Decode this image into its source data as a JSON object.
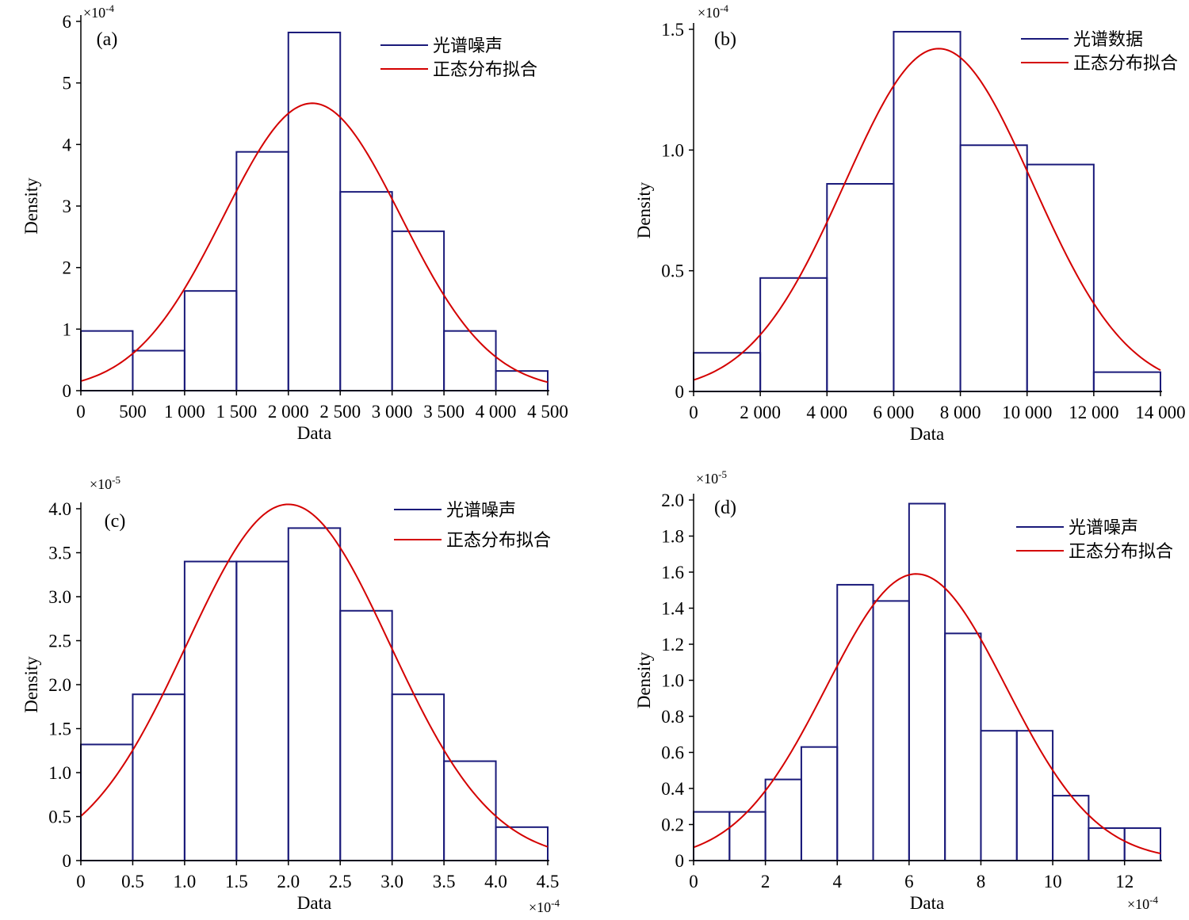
{
  "colors": {
    "histogram": "#1a1a7a",
    "fit": "#d40000",
    "axis": "#000000"
  },
  "chart_data": [
    {
      "panel": "(a)",
      "type": "bar",
      "xlabel": "Data",
      "ylabel": "Density",
      "multiplier": "×10",
      "exponent": "-4",
      "xlim": [
        0,
        4500
      ],
      "ylim": [
        0,
        6
      ],
      "xticks": [
        0,
        500,
        1000,
        1500,
        2000,
        2500,
        3000,
        3500,
        4000,
        4500
      ],
      "xtick_labels": [
        "0",
        "500",
        "1 000",
        "1 500",
        "2 000",
        "2 500",
        "3 000",
        "3 500",
        "4 000",
        "4 500"
      ],
      "yticks": [
        0,
        1,
        2,
        3,
        4,
        5,
        6
      ],
      "ytick_labels": [
        "0",
        "1",
        "2",
        "3",
        "4",
        "5",
        "6"
      ],
      "bin_edges": [
        0,
        500,
        1000,
        1500,
        2000,
        2500,
        3000,
        3500,
        4000,
        4500
      ],
      "values": [
        0.97,
        0.65,
        1.62,
        3.88,
        5.82,
        3.23,
        2.59,
        0.97,
        0.32
      ],
      "fit": {
        "mean": 2230,
        "sd": 855,
        "peak": 4.67
      },
      "legend": [
        "光谱噪声",
        "正态分布拟合"
      ],
      "legend_position": "top-right",
      "multiplier_position": "top-left"
    },
    {
      "panel": "(b)",
      "type": "bar",
      "xlabel": "Data",
      "ylabel": "Density",
      "multiplier": "×10",
      "exponent": "-4",
      "xlim": [
        0,
        14000
      ],
      "ylim": [
        0,
        1.5
      ],
      "xticks": [
        0,
        2000,
        4000,
        6000,
        8000,
        10000,
        12000,
        14000
      ],
      "xtick_labels": [
        "0",
        "2 000",
        "4 000",
        "6 000",
        "8 000",
        "10 000",
        "12 000",
        "14 000"
      ],
      "yticks": [
        0,
        0.5,
        1.0,
        1.5
      ],
      "ytick_labels": [
        "0",
        "0.5",
        "1.0",
        "1.5"
      ],
      "bin_edges": [
        0,
        2000,
        4000,
        6000,
        8000,
        10000,
        12000,
        14000
      ],
      "values": [
        0.16,
        0.47,
        0.86,
        1.49,
        1.02,
        0.94,
        0.08
      ],
      "fit": {
        "mean": 7350,
        "sd": 2820,
        "peak": 1.42
      },
      "legend": [
        "光谱数据",
        "正态分布拟合"
      ],
      "legend_position": "top-right",
      "multiplier_position": "top-left"
    },
    {
      "panel": "(c)",
      "type": "bar",
      "xlabel": "Data",
      "ylabel": "Density",
      "multiplier": "×10",
      "exponent": "-5",
      "x_multiplier": "×10",
      "x_exponent": "-4",
      "xlim": [
        0,
        4.5
      ],
      "ylim": [
        0,
        4.0
      ],
      "xticks": [
        0,
        0.5,
        1.0,
        1.5,
        2.0,
        2.5,
        3.0,
        3.5,
        4.0,
        4.5
      ],
      "xtick_labels": [
        "0",
        "0.5",
        "1.0",
        "1.5",
        "2.0",
        "2.5",
        "3.0",
        "3.5",
        "4.0",
        "4.5"
      ],
      "yticks": [
        0,
        0.5,
        1.0,
        1.5,
        2.0,
        2.5,
        3.0,
        3.5,
        4.0
      ],
      "ytick_labels": [
        "0",
        "0.5",
        "1.0",
        "1.5",
        "2.0",
        "2.5",
        "3.0",
        "3.5",
        "4.0"
      ],
      "bin_edges": [
        0,
        0.5,
        1.0,
        1.5,
        2.0,
        2.5,
        3.0,
        3.5,
        4.0,
        4.5
      ],
      "values": [
        1.32,
        1.89,
        3.4,
        3.4,
        3.78,
        2.84,
        1.89,
        1.13,
        0.38
      ],
      "fit": {
        "mean": 2.0,
        "sd": 0.98,
        "peak": 4.05
      },
      "legend": [
        "光谱噪声",
        "正态分布拟合"
      ],
      "legend_position": "top-right",
      "multiplier_position": "top-left"
    },
    {
      "panel": "(d)",
      "type": "bar",
      "xlabel": "Data",
      "ylabel": "Density",
      "multiplier": "×10",
      "exponent": "-5",
      "x_multiplier": "×10",
      "x_exponent": "-4",
      "xlim": [
        0,
        13
      ],
      "ylim": [
        0,
        2.0
      ],
      "xticks": [
        0,
        2,
        4,
        6,
        8,
        10,
        12
      ],
      "xtick_labels": [
        "0",
        "2",
        "4",
        "6",
        "8",
        "10",
        "12"
      ],
      "yticks": [
        0,
        0.2,
        0.4,
        0.6,
        0.8,
        1.0,
        1.2,
        1.4,
        1.6,
        1.8,
        2.0
      ],
      "ytick_labels": [
        "0",
        "0.2",
        "0.4",
        "0.6",
        "0.8",
        "1.0",
        "1.2",
        "1.4",
        "1.6",
        "1.8",
        "2.0"
      ],
      "bin_edges": [
        0,
        1,
        2,
        3,
        4,
        5,
        6,
        7,
        8,
        9,
        10,
        11,
        12,
        13
      ],
      "values": [
        0.27,
        0.27,
        0.45,
        0.63,
        1.53,
        1.44,
        1.98,
        1.26,
        0.72,
        0.72,
        0.36,
        0.18,
        0.18
      ],
      "fit": {
        "mean": 6.2,
        "sd": 2.5,
        "peak": 1.59
      },
      "legend": [
        "光谱噪声",
        "正态分布拟合"
      ],
      "legend_position": "top-right",
      "multiplier_position": "top-left"
    }
  ]
}
